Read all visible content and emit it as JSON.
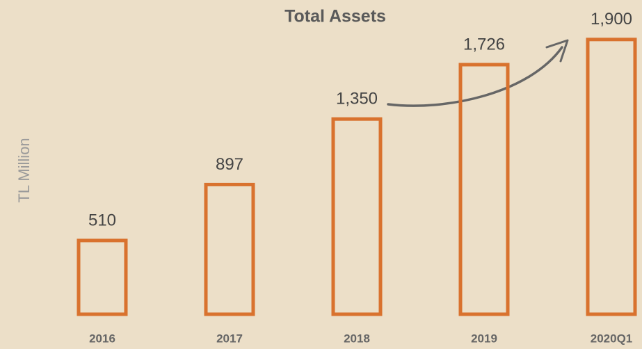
{
  "chart_data": {
    "type": "bar",
    "title": "Total Assets",
    "y_label": "TL Million",
    "categories": [
      "2016",
      "2017",
      "2018",
      "2019",
      "2020Q1"
    ],
    "values": [
      510,
      897,
      1350,
      1726,
      1900
    ],
    "value_labels": [
      "510",
      "897",
      "1,350",
      "1,726",
      "1,900"
    ],
    "color": "#d9722e",
    "ylim": [
      0,
      2000
    ]
  }
}
